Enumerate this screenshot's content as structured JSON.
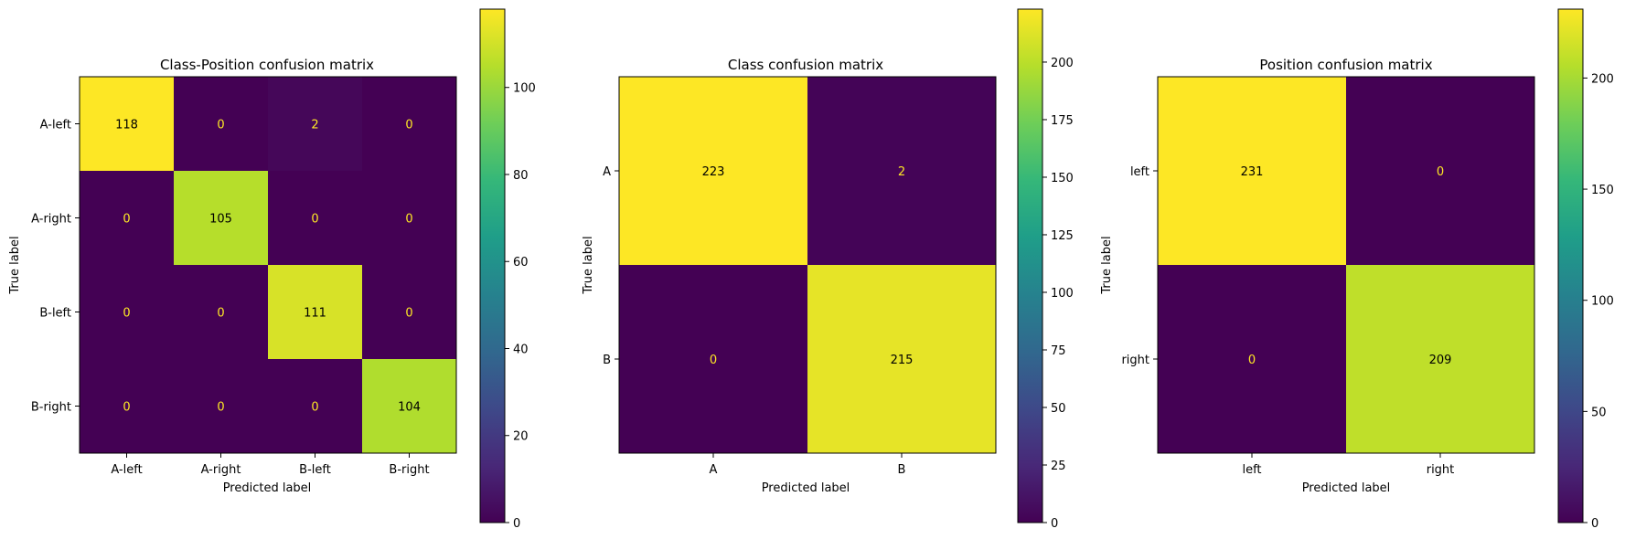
{
  "colorscale": {
    "name": "viridis",
    "stops": [
      "#440154",
      "#482878",
      "#3e4989",
      "#31688e",
      "#26828e",
      "#1f9e89",
      "#35b779",
      "#6ece58",
      "#b5de2b",
      "#fde725"
    ]
  },
  "text_colors": {
    "on_dark": "#fde725",
    "on_light": "#000000"
  },
  "chart_data": [
    {
      "type": "heatmap",
      "title": "Class-Position confusion matrix",
      "xlabel": "Predicted label",
      "ylabel": "True label",
      "x_categories": [
        "A-left",
        "A-right",
        "B-left",
        "B-right"
      ],
      "y_categories": [
        "A-left",
        "A-right",
        "B-left",
        "B-right"
      ],
      "values": [
        [
          118,
          0,
          2,
          0
        ],
        [
          0,
          105,
          0,
          0
        ],
        [
          0,
          0,
          111,
          0
        ],
        [
          0,
          0,
          0,
          104
        ]
      ],
      "colorbar": {
        "min": 0,
        "max": 118,
        "ticks": [
          0,
          20,
          40,
          60,
          80,
          100
        ]
      }
    },
    {
      "type": "heatmap",
      "title": "Class confusion matrix",
      "xlabel": "Predicted label",
      "ylabel": "True label",
      "x_categories": [
        "A",
        "B"
      ],
      "y_categories": [
        "A",
        "B"
      ],
      "values": [
        [
          223,
          2
        ],
        [
          0,
          215
        ]
      ],
      "colorbar": {
        "min": 0,
        "max": 223,
        "ticks": [
          0,
          25,
          50,
          75,
          100,
          125,
          150,
          175,
          200
        ]
      }
    },
    {
      "type": "heatmap",
      "title": "Position confusion matrix",
      "xlabel": "Predicted label",
      "ylabel": "True label",
      "x_categories": [
        "left",
        "right"
      ],
      "y_categories": [
        "left",
        "right"
      ],
      "values": [
        [
          231,
          0
        ],
        [
          0,
          209
        ]
      ],
      "colorbar": {
        "min": 0,
        "max": 231,
        "ticks": [
          0,
          50,
          100,
          150,
          200
        ]
      }
    }
  ]
}
